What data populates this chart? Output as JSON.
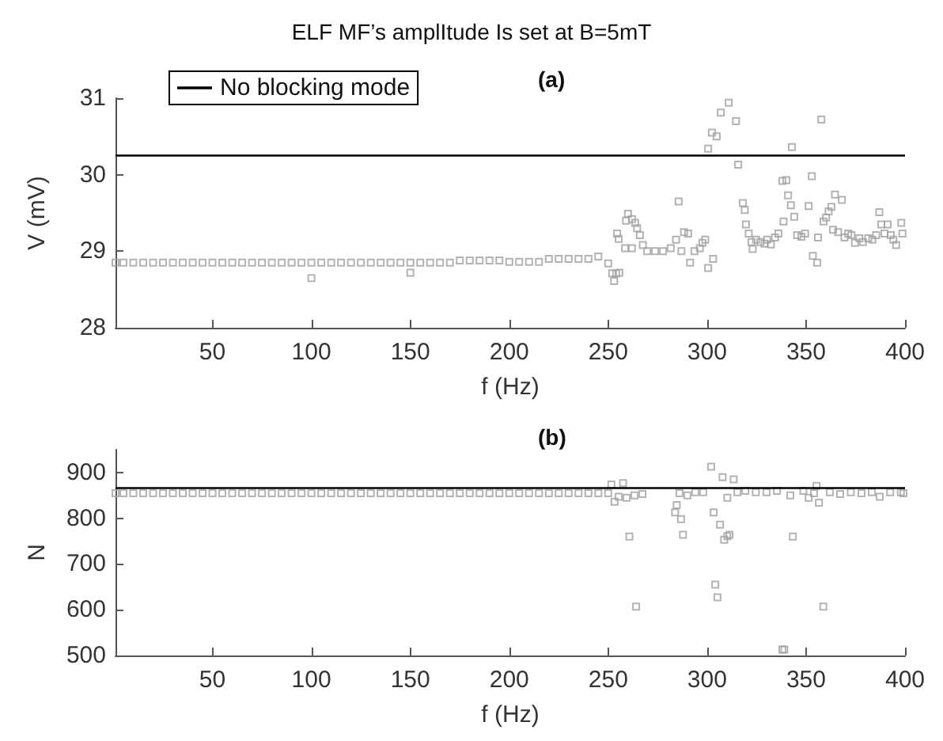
{
  "chart_data": [
    {
      "type": "scatter",
      "title": "ELF MF’s amplItude Is set at B=5mT",
      "subtitle": "(a)",
      "xlabel": "f (Hz)",
      "ylabel": "V (mV)",
      "xlim": [
        1,
        400
      ],
      "xticks": [
        50,
        100,
        150,
        200,
        250,
        300,
        350,
        400
      ],
      "ylim": [
        28,
        31
      ],
      "yticks": [
        28,
        29,
        30,
        31
      ],
      "marker": "square",
      "legend": "top left",
      "ref_lines": [
        {
          "axis": "y",
          "value": 30.25,
          "label": "No blocking mode",
          "color": "#000000"
        }
      ],
      "series": [
        {
          "color": "#a0a0a0",
          "x": [
            1,
            5,
            10,
            15,
            20,
            25,
            30,
            35,
            40,
            45,
            50,
            55,
            60,
            65,
            70,
            75,
            80,
            85,
            90,
            95,
            100,
            105,
            110,
            115,
            120,
            125,
            130,
            135,
            140,
            145,
            150,
            155,
            160,
            165,
            170,
            175,
            180,
            185,
            190,
            195,
            200,
            205,
            210,
            215,
            220,
            225,
            230,
            235,
            240,
            245,
            100,
            150,
            250,
            252,
            253,
            254,
            255.6,
            254.5,
            255.3,
            260,
            259,
            262,
            263.6,
            264.6,
            266,
            258.5,
            262,
            267.5,
            269.7,
            273.7,
            277.7,
            281.6,
            284.3,
            285.6,
            288.3,
            290.4,
            291.4,
            287,
            293.6,
            296.3,
            297.6,
            299,
            300.5,
            303,
            300.5,
            302.4,
            304.8,
            306.9,
            310.9,
            314.6,
            315.7,
            318,
            319,
            319.6,
            321,
            322.4,
            323,
            324.7,
            326.9,
            329,
            330.3,
            332.2,
            334.3,
            336,
            338.6,
            338,
            340,
            340.9,
            342.8,
            342.3,
            344,
            345.5,
            347.6,
            349.5,
            351.3,
            352.9,
            353.4,
            355.6,
            356,
            357.7,
            358.8,
            360.1,
            361.4,
            362.8,
            364.6,
            363.6,
            366.2,
            368.1,
            369.4,
            371.3,
            372.9,
            374.7,
            376.9,
            378.7,
            381.4,
            383.5,
            385.4,
            387,
            388,
            389.6,
            391.2,
            392.8,
            394.1,
            395.5,
            398.1,
            398.7
          ],
          "values": [
            28.85,
            28.85,
            28.85,
            28.85,
            28.85,
            28.85,
            28.85,
            28.85,
            28.85,
            28.85,
            28.85,
            28.85,
            28.85,
            28.85,
            28.85,
            28.85,
            28.85,
            28.85,
            28.85,
            28.85,
            28.85,
            28.85,
            28.85,
            28.85,
            28.85,
            28.85,
            28.85,
            28.85,
            28.85,
            28.85,
            28.85,
            28.85,
            28.85,
            28.85,
            28.85,
            28.88,
            28.88,
            28.88,
            28.88,
            28.88,
            28.86,
            28.86,
            28.86,
            28.86,
            28.9,
            28.9,
            28.9,
            28.9,
            28.9,
            28.93,
            28.65,
            28.72,
            28.84,
            28.71,
            28.61,
            28.71,
            28.72,
            29.23,
            29.16,
            29.49,
            29.4,
            29.42,
            29.37,
            29.3,
            29.21,
            29.04,
            29.04,
            29.08,
            29.0,
            29.0,
            29.0,
            29.04,
            29.15,
            29.65,
            29.25,
            29.23,
            28.85,
            29.0,
            29.0,
            29.04,
            29.11,
            29.15,
            28.78,
            28.9,
            30.34,
            30.55,
            30.5,
            30.81,
            30.94,
            30.7,
            30.13,
            29.63,
            29.54,
            29.35,
            29.23,
            29.12,
            29.03,
            29.15,
            29.12,
            29.1,
            29.15,
            29.09,
            29.18,
            29.23,
            29.39,
            29.92,
            29.93,
            29.73,
            30.36,
            29.6,
            29.45,
            29.21,
            29.19,
            29.23,
            29.59,
            29.98,
            28.94,
            28.85,
            29.18,
            30.72,
            29.39,
            29.44,
            29.52,
            29.58,
            29.74,
            29.28,
            29.25,
            29.67,
            29.18,
            29.23,
            29.21,
            29.11,
            29.17,
            29.12,
            29.17,
            29.15,
            29.21,
            29.51,
            29.35,
            29.23,
            29.35,
            29.21,
            29.15,
            29.08,
            29.37,
            29.23
          ]
        }
      ]
    },
    {
      "type": "scatter",
      "title": "(b)",
      "xlabel": "f (Hz)",
      "ylabel": "N",
      "xlim": [
        1,
        400
      ],
      "xticks": [
        50,
        100,
        150,
        200,
        250,
        300,
        350,
        400
      ],
      "ylim": [
        500,
        950
      ],
      "yticks": [
        500,
        600,
        700,
        800,
        900
      ],
      "marker": "square",
      "ref_lines": [
        {
          "axis": "y",
          "value": 866,
          "color": "#000000"
        }
      ],
      "series": [
        {
          "color": "#a0a0a0",
          "x": [
            1,
            5,
            10,
            15,
            20,
            25,
            30,
            35,
            40,
            45,
            50,
            55,
            60,
            65,
            70,
            75,
            80,
            85,
            90,
            95,
            100,
            105,
            110,
            115,
            120,
            125,
            130,
            135,
            140,
            145,
            150,
            155,
            160,
            165,
            170,
            175,
            180,
            185,
            190,
            195,
            200,
            205,
            210,
            215,
            220,
            225,
            230,
            235,
            240,
            245,
            250,
            302,
            307.8,
            313.4,
            251.6,
            257.5,
            253.2,
            255.3,
            259.3,
            263.3,
            267.3,
            260.7,
            264.1,
            284.6,
            283.8,
            286.8,
            287.8,
            286,
            290,
            294,
            298,
            303.3,
            304.1,
            305.2,
            306.5,
            308.6,
            310.2,
            311.3,
            310.2,
            315.3,
            319.3,
            324.6,
            330,
            335.3,
            342,
            343.3,
            339,
            338,
            348.6,
            351.3,
            355.3,
            356.5,
            358.7,
            354,
            362,
            367.2,
            372.6,
            378,
            383.2,
            387.2,
            392.5,
            397.9,
            399.2
          ],
          "values": [
            855,
            855,
            855,
            855,
            855,
            855,
            855,
            855,
            855,
            855,
            855,
            855,
            855,
            855,
            855,
            855,
            855,
            855,
            855,
            855,
            855,
            855,
            855,
            855,
            855,
            855,
            855,
            855,
            855,
            855,
            855,
            855,
            855,
            855,
            855,
            855,
            855,
            855,
            855,
            855,
            855,
            855,
            855,
            855,
            855,
            855,
            855,
            855,
            855,
            855,
            855,
            913,
            890,
            885,
            874,
            877,
            836,
            847,
            845,
            850,
            853,
            760,
            607,
            829,
            813,
            798,
            764,
            855,
            850,
            857,
            857,
            813,
            655,
            627,
            786,
            753,
            761,
            764,
            845,
            857,
            860,
            857,
            857,
            860,
            850,
            760,
            513,
            513,
            860,
            845,
            871,
            834,
            607,
            855,
            857,
            853,
            857,
            855,
            857,
            847,
            857,
            857,
            855
          ]
        }
      ]
    }
  ]
}
